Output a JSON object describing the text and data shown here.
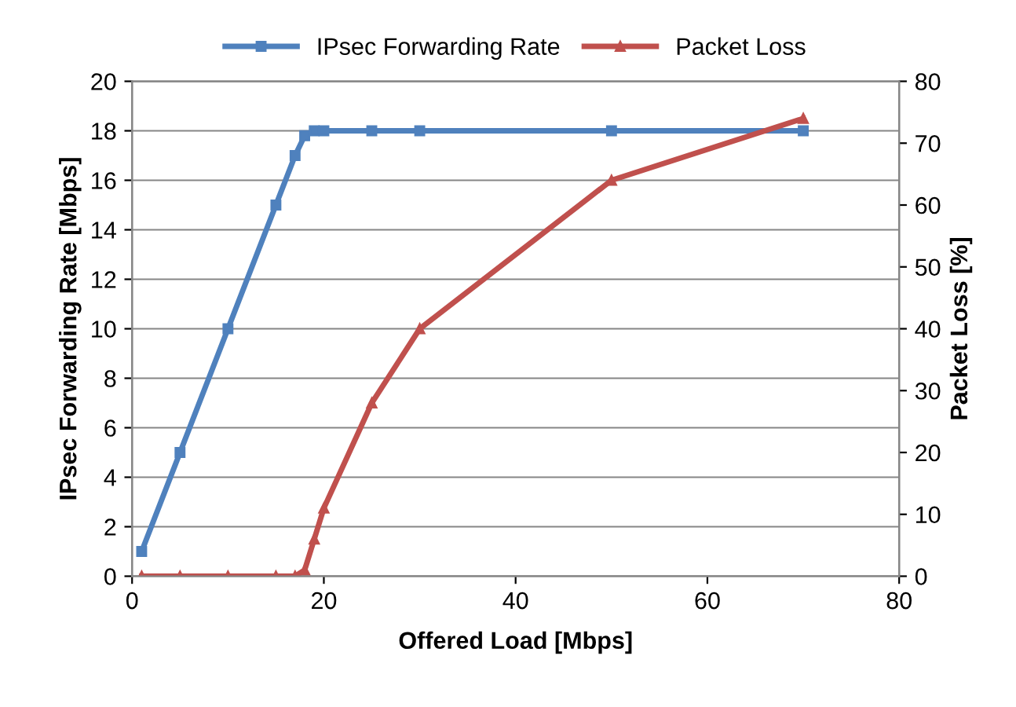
{
  "chart_data": {
    "type": "line",
    "xlabel": "Offered Load [Mbps]",
    "ylabel": "IPsec Forwarding Rate [Mbps]",
    "y2label": "Packet Loss [%]",
    "x": [
      1,
      5,
      10,
      15,
      17,
      18,
      19,
      20,
      25,
      30,
      50,
      70
    ],
    "series": [
      {
        "name": "IPsec Forwarding Rate",
        "color": "#4f81bd",
        "marker": "square",
        "values": [
          1,
          5,
          10,
          15,
          17,
          17.8,
          18,
          18,
          18,
          18,
          18,
          18
        ]
      },
      {
        "name": "Packet Loss",
        "color": "#c0504d",
        "marker": "triangle",
        "axis": "y2",
        "values": [
          0,
          0,
          0,
          0,
          0,
          1,
          6,
          11,
          28,
          40,
          64,
          74
        ]
      }
    ],
    "xlim": [
      0,
      80
    ],
    "xticks": [
      0,
      20,
      40,
      60,
      80
    ],
    "ylim": [
      0,
      20
    ],
    "yticks": [
      0,
      2,
      4,
      6,
      8,
      10,
      12,
      14,
      16,
      18,
      20
    ],
    "y2lim": [
      0,
      80
    ],
    "y2ticks": [
      0,
      10,
      20,
      30,
      40,
      50,
      60,
      70,
      80
    ],
    "grid": "y",
    "legend": "top",
    "line_style": "solid"
  }
}
